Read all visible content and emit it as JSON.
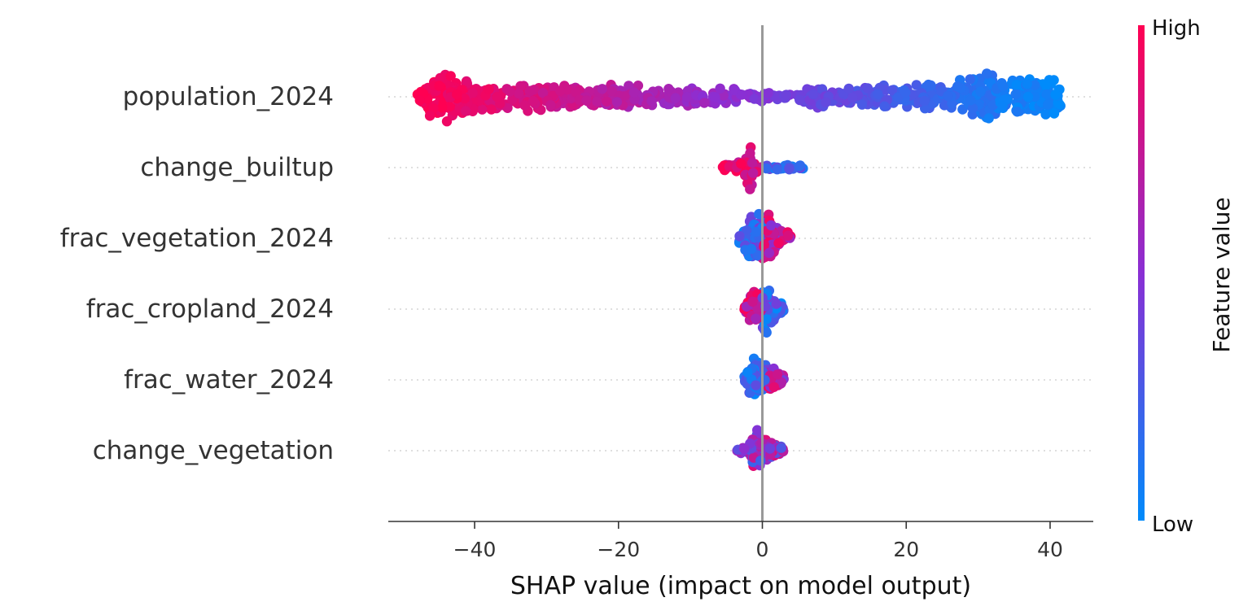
{
  "chart_data": {
    "type": "scatter",
    "subtype": "shap-beeswarm",
    "xlabel": "SHAP value (impact on model output)",
    "xlim": [
      -52,
      46
    ],
    "xticks": [
      -40,
      -20,
      0,
      20,
      40
    ],
    "xtick_labels": [
      "−40",
      "−20",
      "0",
      "20",
      "40"
    ],
    "zero_line": 0,
    "features": [
      {
        "name": "population_2024",
        "shap_min": -48.0,
        "shap_max": 41.5,
        "density": [
          [
            -48,
            0.2
          ],
          [
            -46,
            0.75
          ],
          [
            -44,
            0.9
          ],
          [
            -41,
            0.6
          ],
          [
            -38,
            0.55
          ],
          [
            -34,
            0.45
          ],
          [
            -31,
            0.55
          ],
          [
            -27,
            0.4
          ],
          [
            -23,
            0.35
          ],
          [
            -19,
            0.45
          ],
          [
            -15,
            0.3
          ],
          [
            -11,
            0.35
          ],
          [
            -7,
            0.25
          ],
          [
            -3,
            0.35
          ],
          [
            0,
            0.2
          ],
          [
            3,
            0.08
          ],
          [
            5,
            0.15
          ],
          [
            7,
            0.45
          ],
          [
            10,
            0.35
          ],
          [
            13,
            0.3
          ],
          [
            16,
            0.45
          ],
          [
            20,
            0.35
          ],
          [
            23,
            0.5
          ],
          [
            26,
            0.35
          ],
          [
            28,
            0.7
          ],
          [
            30,
            0.9
          ],
          [
            32,
            0.8
          ],
          [
            34,
            0.5
          ],
          [
            36,
            0.85
          ],
          [
            38,
            0.65
          ],
          [
            40,
            0.9
          ],
          [
            41.5,
            0.6
          ]
        ]
      },
      {
        "name": "change_builtup",
        "shap_min": -5.5,
        "shap_max": 6.0,
        "density": [
          [
            -5.5,
            0.12
          ],
          [
            -4,
            0.18
          ],
          [
            -2.5,
            0.3
          ],
          [
            -1.8,
            1.0
          ],
          [
            -1.2,
            0.3
          ],
          [
            0,
            0.12
          ],
          [
            1.5,
            0.12
          ],
          [
            3,
            0.1
          ],
          [
            4.5,
            0.15
          ],
          [
            6,
            0.12
          ]
        ]
      },
      {
        "name": "frac_vegetation_2024",
        "shap_min": -3.5,
        "shap_max": 4.0,
        "density": [
          [
            -3.5,
            0.12
          ],
          [
            -2,
            0.65
          ],
          [
            -1,
            0.9
          ],
          [
            0,
            0.75
          ],
          [
            1,
            0.8
          ],
          [
            2,
            0.6
          ],
          [
            3,
            0.35
          ],
          [
            4,
            0.12
          ]
        ]
      },
      {
        "name": "frac_cropland_2024",
        "shap_min": -2.5,
        "shap_max": 3.0,
        "density": [
          [
            -2.5,
            0.15
          ],
          [
            -1.5,
            0.55
          ],
          [
            -0.5,
            0.6
          ],
          [
            0.5,
            0.9
          ],
          [
            1.5,
            0.6
          ],
          [
            2.5,
            0.25
          ],
          [
            3,
            0.1
          ]
        ]
      },
      {
        "name": "frac_water_2024",
        "shap_min": -2.5,
        "shap_max": 3.0,
        "density": [
          [
            -2.5,
            0.2
          ],
          [
            -1.2,
            0.8
          ],
          [
            0,
            0.65
          ],
          [
            1,
            0.5
          ],
          [
            2,
            0.35
          ],
          [
            3,
            0.15
          ]
        ]
      },
      {
        "name": "change_vegetation",
        "shap_min": -3.5,
        "shap_max": 3.0,
        "density": [
          [
            -3.5,
            0.1
          ],
          [
            -2,
            0.2
          ],
          [
            -0.8,
            0.75
          ],
          [
            0,
            0.45
          ],
          [
            1,
            0.35
          ],
          [
            2,
            0.25
          ],
          [
            3,
            0.1
          ]
        ]
      }
    ],
    "colorbar": {
      "label": "Feature value",
      "high_label": "High",
      "low_label": "Low",
      "high_color": "#ff0052",
      "mid_color": "#8a2fd4",
      "low_color": "#008bfb"
    },
    "grid": false
  }
}
